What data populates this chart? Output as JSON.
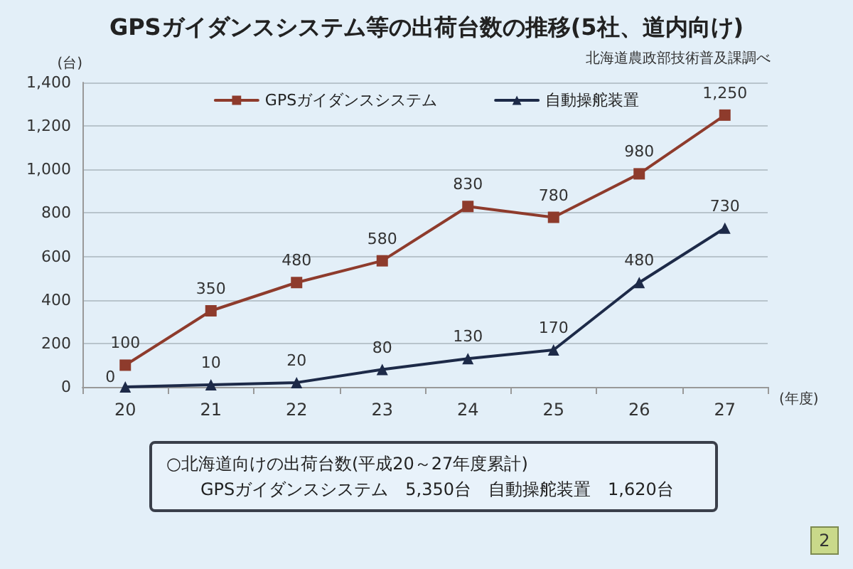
{
  "chart_data": {
    "type": "line",
    "title": "GPSガイダンスシステム等の出荷台数の推移(5社、道内向け)",
    "xlabel": "(年度)",
    "ylabel": "(台)",
    "categories": [
      "20",
      "21",
      "22",
      "23",
      "24",
      "25",
      "26",
      "27"
    ],
    "series": [
      {
        "name": "GPSガイダンスシステム",
        "color": "#8e3b2c",
        "marker": "square",
        "values": [
          100,
          350,
          480,
          580,
          830,
          780,
          980,
          1250
        ],
        "value_labels": [
          "100",
          "350",
          "480",
          "580",
          "830",
          "780",
          "980",
          "1,250"
        ]
      },
      {
        "name": "自動操舵装置",
        "color": "#1d2a48",
        "marker": "triangle",
        "values": [
          0,
          10,
          20,
          80,
          130,
          170,
          480,
          730
        ],
        "value_labels": [
          "0",
          "10",
          "20",
          "80",
          "130",
          "170",
          "480",
          "730"
        ]
      }
    ],
    "ylim": [
      0,
      1400
    ],
    "yticks": [
      0,
      200,
      400,
      600,
      800,
      {
        "value": 1000,
        "label": "1,000"
      },
      {
        "value": 1200,
        "label": "1,200"
      },
      {
        "value": 1400,
        "label": "1,400"
      }
    ],
    "grid": "y",
    "legend": "top",
    "annotations": [
      "北海道農政部技術普及課調べ",
      "○北海道向けの出荷台数(平成20～27年度累計)",
      "GPSガイダンスシステム　5,350台　自動操舵装置　1,620台",
      "2"
    ]
  }
}
